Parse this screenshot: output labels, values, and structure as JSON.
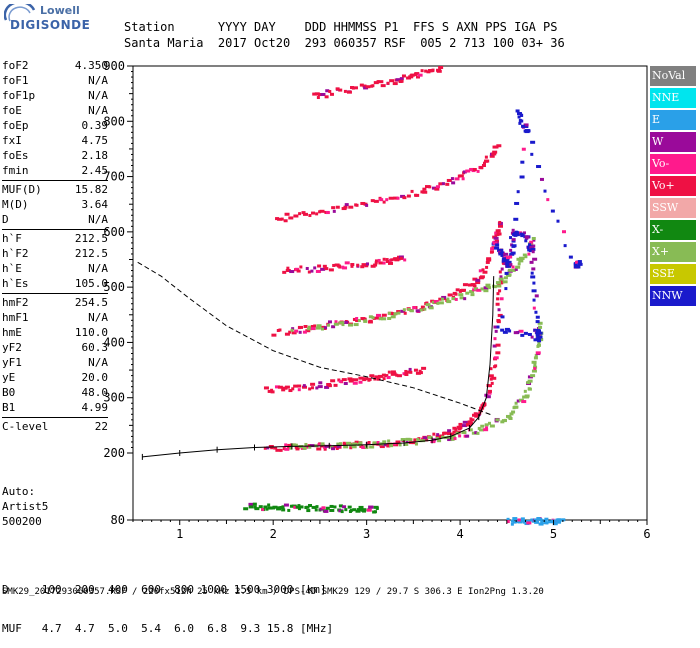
{
  "logo": {
    "line1": "Lowell",
    "line2": "DIGISONDE"
  },
  "header": {
    "line1": "Station      YYYY DAY    DDD HHMMSS P1  FFS S AXN PPS IGA PS",
    "line2": "Santa Maria  2017 Oct20  293 060357 RSF  005 2 713 100 03+ 36"
  },
  "params": {
    "group1": [
      {
        "key": "foF2",
        "value": "4.350"
      },
      {
        "key": "foF1",
        "value": "N/A"
      },
      {
        "key": "foF1p",
        "value": "N/A"
      },
      {
        "key": "foE",
        "value": "N/A"
      },
      {
        "key": "foEp",
        "value": "0.39"
      },
      {
        "key": "fxI",
        "value": "4.75"
      },
      {
        "key": "foEs",
        "value": "2.18"
      },
      {
        "key": "fmin",
        "value": "2.45"
      }
    ],
    "group2": [
      {
        "key": "MUF(D)",
        "value": "15.82"
      },
      {
        "key": "M(D)",
        "value": "3.64"
      },
      {
        "key": "D",
        "value": "N/A"
      }
    ],
    "group3": [
      {
        "key": "h`F",
        "value": "212.5"
      },
      {
        "key": "h`F2",
        "value": "212.5"
      },
      {
        "key": "h`E",
        "value": "N/A"
      },
      {
        "key": "h`Es",
        "value": "105.0"
      }
    ],
    "group4": [
      {
        "key": "hmF2",
        "value": "254.5"
      },
      {
        "key": "hmF1",
        "value": "N/A"
      },
      {
        "key": "hmE",
        "value": "110.0"
      },
      {
        "key": "yF2",
        "value": "60.3"
      },
      {
        "key": "yF1",
        "value": "N/A"
      },
      {
        "key": "yE",
        "value": "20.0"
      },
      {
        "key": "B0",
        "value": "48.0"
      },
      {
        "key": "B1",
        "value": "4.99"
      }
    ],
    "group5": [
      {
        "key": "C-level",
        "value": "22"
      }
    ]
  },
  "artist": {
    "line1": "Auto:",
    "line2": "Artist5",
    "line3": "500200"
  },
  "legend": [
    {
      "label": "NoVal",
      "color": "#808080"
    },
    {
      "label": "NNE",
      "color": "#00e5ee"
    },
    {
      "label": "E",
      "color": "#2aa0e8"
    },
    {
      "label": "W",
      "color": "#9a0a9a"
    },
    {
      "label": "Vo-",
      "color": "#ff1a8c"
    },
    {
      "label": "Vo+",
      "color": "#ee1144"
    },
    {
      "label": "SSW",
      "color": "#f2a8a8"
    },
    {
      "label": "X-",
      "color": "#118811"
    },
    {
      "label": "X+",
      "color": "#88bb55"
    },
    {
      "label": "SSE",
      "color": "#c8c800"
    },
    {
      "label": "NNW",
      "color": "#1a1acc"
    }
  ],
  "chart_data": {
    "type": "scatter",
    "xlim": [
      0.5,
      6.0
    ],
    "ylim": [
      80,
      900
    ],
    "x_ticks": [
      "1",
      "2",
      "3",
      "4",
      "5",
      "6"
    ],
    "y_ticks": [
      "80",
      "200",
      "300",
      "400",
      "500",
      "600",
      "700",
      "800",
      "900"
    ],
    "traces": [
      {
        "name": "F2-O",
        "color": "#ee1144",
        "points": [
          [
            1.9,
            212
          ],
          [
            2.3,
            213
          ],
          [
            2.8,
            216
          ],
          [
            3.2,
            220
          ],
          [
            3.6,
            228
          ],
          [
            3.9,
            240
          ],
          [
            4.1,
            258
          ],
          [
            4.25,
            290
          ],
          [
            4.35,
            360
          ],
          [
            4.4,
            480
          ],
          [
            4.45,
            580
          ]
        ]
      },
      {
        "name": "F2-X",
        "color": "#88bb55",
        "points": [
          [
            2.1,
            213
          ],
          [
            2.6,
            215
          ],
          [
            3.0,
            218
          ],
          [
            3.5,
            224
          ],
          [
            3.9,
            232
          ],
          [
            4.2,
            245
          ],
          [
            4.5,
            268
          ],
          [
            4.7,
            310
          ],
          [
            4.8,
            380
          ],
          [
            4.85,
            440
          ]
        ]
      },
      {
        "name": "F2-O-2hop",
        "color": "#ee1144",
        "points": [
          [
            2.0,
            420
          ],
          [
            2.5,
            432
          ],
          [
            3.0,
            445
          ],
          [
            3.5,
            462
          ],
          [
            3.9,
            485
          ],
          [
            4.2,
            520
          ],
          [
            4.35,
            580
          ],
          [
            4.4,
            620
          ]
        ]
      },
      {
        "name": "F2-X-2hop",
        "color": "#88bb55",
        "points": [
          [
            2.2,
            424
          ],
          [
            2.7,
            436
          ],
          [
            3.2,
            450
          ],
          [
            3.7,
            470
          ],
          [
            4.1,
            490
          ],
          [
            4.4,
            510
          ],
          [
            4.6,
            545
          ],
          [
            4.8,
            590
          ]
        ]
      },
      {
        "name": "F2-3hop",
        "color": "#ee1144",
        "points": [
          [
            2.0,
            625
          ],
          [
            2.5,
            640
          ],
          [
            3.0,
            655
          ],
          [
            3.5,
            672
          ],
          [
            3.9,
            695
          ],
          [
            4.2,
            720
          ],
          [
            4.4,
            760
          ]
        ]
      },
      {
        "name": "F2-4hop",
        "color": "#ee1144",
        "points": [
          [
            2.4,
            848
          ],
          [
            2.8,
            860
          ],
          [
            3.2,
            872
          ],
          [
            3.5,
            885
          ],
          [
            3.8,
            900
          ]
        ]
      },
      {
        "name": "Es",
        "color": "#ee1144",
        "points": [
          [
            1.9,
            316
          ],
          [
            2.3,
            322
          ],
          [
            2.7,
            330
          ],
          [
            3.0,
            338
          ],
          [
            3.3,
            346
          ],
          [
            3.6,
            352
          ]
        ]
      },
      {
        "name": "Es-2",
        "color": "#ee1144",
        "points": [
          [
            2.1,
            531
          ],
          [
            2.5,
            537
          ],
          [
            2.9,
            543
          ],
          [
            3.2,
            549
          ],
          [
            3.4,
            555
          ]
        ]
      },
      {
        "name": "NNW",
        "color": "#1a1acc",
        "points": [
          [
            4.35,
            580
          ],
          [
            4.45,
            560
          ],
          [
            4.5,
            540
          ],
          [
            4.55,
            600
          ],
          [
            4.7,
            595
          ],
          [
            4.75,
            565
          ],
          [
            4.8,
            430
          ],
          [
            4.83,
            410
          ],
          [
            4.4,
            428
          ],
          [
            4.7,
            780
          ],
          [
            4.6,
            820
          ],
          [
            5.2,
            540
          ],
          [
            5.25,
            545
          ]
        ]
      },
      {
        "name": "E-layer",
        "color": "#118811",
        "points": [
          [
            1.7,
            106
          ],
          [
            2.0,
            105
          ],
          [
            2.3,
            104
          ],
          [
            2.6,
            103
          ],
          [
            2.9,
            102
          ],
          [
            3.1,
            101
          ]
        ]
      },
      {
        "name": "E-blue",
        "color": "#2aa0e8",
        "points": [
          [
            4.5,
            80
          ],
          [
            4.7,
            80
          ],
          [
            4.9,
            80
          ],
          [
            5.1,
            80
          ]
        ]
      }
    ],
    "profile": [
      [
        0.6,
        193
      ],
      [
        1.0,
        200
      ],
      [
        1.4,
        206
      ],
      [
        1.8,
        210
      ],
      [
        2.2,
        212
      ],
      [
        2.6,
        213
      ],
      [
        3.0,
        215
      ],
      [
        3.4,
        218
      ],
      [
        3.7,
        223
      ],
      [
        3.9,
        230
      ],
      [
        4.1,
        245
      ],
      [
        4.2,
        265
      ],
      [
        4.28,
        300
      ],
      [
        4.32,
        360
      ],
      [
        4.35,
        450
      ],
      [
        4.36,
        520
      ]
    ],
    "dashed": [
      [
        0.55,
        545
      ],
      [
        0.8,
        520
      ],
      [
        1.1,
        480
      ],
      [
        1.5,
        430
      ],
      [
        2.0,
        385
      ],
      [
        2.5,
        355
      ],
      [
        3.0,
        338
      ],
      [
        3.5,
        318
      ],
      [
        4.0,
        290
      ],
      [
        4.35,
        268
      ]
    ],
    "x_label": "",
    "y_label": ""
  },
  "bottom_table": {
    "line1": "D     100  200  400  600  800 1000 1500 3000 [km]",
    "line2": "MUF   4.7  4.7  5.0  5.4  6.0  6.8  9.3 15.8 [MHz]"
  },
  "footer": "SMK29_2017293060357.RSF / 220fx512h 25 kHz 2.5 km / DPS-4D SMK29 129 / 29.7 S 306.3 E Ion2Png 1.3.20"
}
